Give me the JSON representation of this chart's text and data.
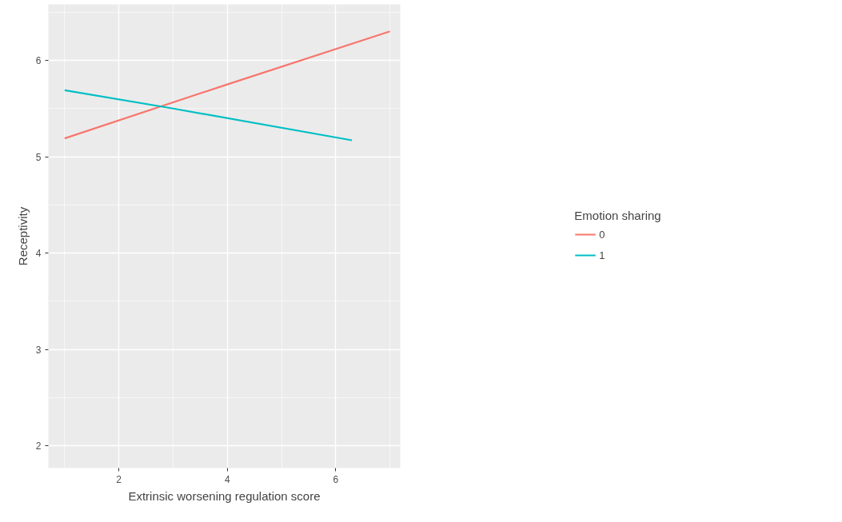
{
  "chart_data": {
    "type": "line",
    "xlabel": "Extrinsic worsening regulation score",
    "ylabel": "Receptivity",
    "legend_title": "Emotion sharing",
    "series": [
      {
        "name": "0",
        "color": "#f8766d",
        "x": [
          1,
          4,
          7
        ],
        "values": [
          5.19,
          5.75,
          6.3
        ]
      },
      {
        "name": "1",
        "color": "#00bfc4",
        "x": [
          1,
          3,
          6.3
        ],
        "values": [
          5.69,
          5.5,
          5.17
        ]
      }
    ],
    "xlim": [
      0.7,
      7.19
    ],
    "ylim": [
      1.77,
      6.58
    ],
    "xticks": [
      2,
      4,
      6
    ],
    "yticks": [
      2,
      3,
      4,
      5,
      6
    ],
    "grid": true,
    "legend": "right",
    "marker": "none",
    "line_style": "solid"
  }
}
